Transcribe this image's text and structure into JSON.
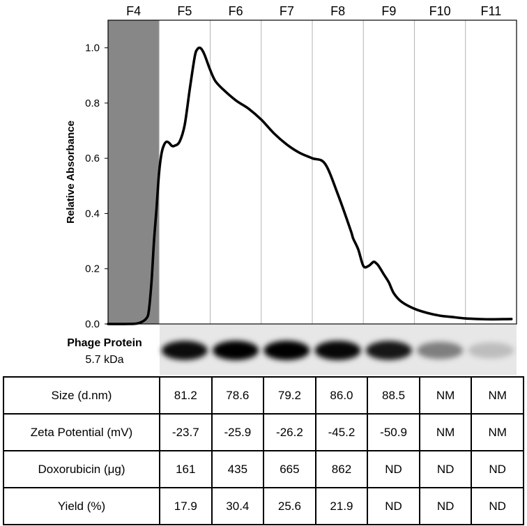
{
  "chart_data": {
    "type": "line",
    "title": "",
    "xlabel": "",
    "ylabel": "Relative Absorbance",
    "ylim": [
      0,
      1.1
    ],
    "yticks": [
      "0.0",
      "0.2",
      "0.4",
      "0.6",
      "0.8",
      "1.0"
    ],
    "grid": "vertical lines at fraction boundaries",
    "fractions": [
      "F4",
      "F5",
      "F6",
      "F7",
      "F8",
      "F9",
      "F10",
      "F11"
    ],
    "shaded_fraction": "F4",
    "shade_color": "#878787",
    "line_color": "#000000",
    "x_range": [
      4,
      12
    ],
    "series": [
      {
        "x": [
          4.0,
          4.4,
          4.6,
          4.75,
          4.8,
          4.85,
          4.9,
          4.95,
          5.0,
          5.05,
          5.1,
          5.15,
          5.2,
          5.25,
          5.3,
          5.4,
          5.5,
          5.6,
          5.7,
          5.75,
          5.8,
          5.85,
          5.9,
          6.0,
          6.1,
          6.25,
          6.5,
          6.75,
          7.0,
          7.25,
          7.5,
          7.75,
          8.0,
          8.25,
          8.5,
          8.75,
          8.8,
          8.9,
          9.0,
          9.1,
          9.2,
          9.25,
          9.3,
          9.4,
          9.5,
          9.6,
          9.75,
          10.0,
          10.25,
          10.5,
          10.75,
          11.0,
          11.25,
          11.5,
          11.9
        ],
        "y": [
          0.0,
          0.0,
          0.003,
          0.02,
          0.05,
          0.15,
          0.3,
          0.42,
          0.55,
          0.62,
          0.65,
          0.66,
          0.655,
          0.645,
          0.645,
          0.66,
          0.72,
          0.85,
          0.97,
          0.995,
          1.0,
          0.99,
          0.97,
          0.92,
          0.88,
          0.85,
          0.81,
          0.78,
          0.74,
          0.69,
          0.65,
          0.62,
          0.6,
          0.58,
          0.47,
          0.34,
          0.31,
          0.27,
          0.21,
          0.21,
          0.225,
          0.22,
          0.21,
          0.18,
          0.15,
          0.11,
          0.08,
          0.055,
          0.04,
          0.03,
          0.025,
          0.02,
          0.018,
          0.017,
          0.018
        ]
      }
    ]
  },
  "gel": {
    "label_bold": "Phage Protein",
    "label_size": "5.7 kDa",
    "band_intensity": [
      0.95,
      1.0,
      1.0,
      0.97,
      0.9,
      0.45,
      0.18
    ]
  },
  "table": {
    "rows": [
      {
        "label": "Size (d.nm)",
        "values": [
          "81.2",
          "78.6",
          "79.2",
          "86.0",
          "88.5",
          "NM",
          "NM"
        ]
      },
      {
        "label": "Zeta Potential (mV)",
        "values": [
          "-23.7",
          "-25.9",
          "-26.2",
          "-45.2",
          "-50.9",
          "NM",
          "NM"
        ]
      },
      {
        "label": "Doxorubicin (μg)",
        "values": [
          "161",
          "435",
          "665",
          "862",
          "ND",
          "ND",
          "ND"
        ]
      },
      {
        "label": "Yield (%)",
        "values": [
          "17.9",
          "30.4",
          "25.6",
          "21.9",
          "ND",
          "ND",
          "ND"
        ]
      }
    ]
  }
}
